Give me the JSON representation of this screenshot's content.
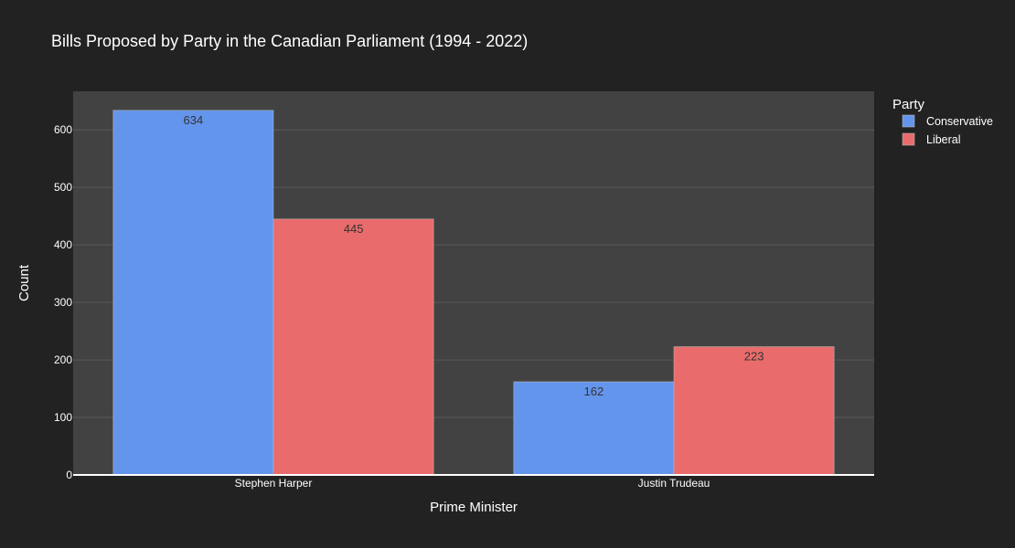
{
  "chart_data": {
    "type": "bar",
    "title": "Bills Proposed by Party in the Canadian Parliament (1994 - 2022)",
    "xlabel": "Prime Minister",
    "ylabel": "Count",
    "categories": [
      "Stephen Harper",
      "Justin Trudeau"
    ],
    "series": [
      {
        "name": "Conservative",
        "values": [
          634,
          162
        ],
        "color": "#6495ED"
      },
      {
        "name": "Liberal",
        "values": [
          445,
          223
        ],
        "color": "#EA6B6B"
      }
    ],
    "ylim": [
      0,
      667
    ],
    "yticks": [
      0,
      100,
      200,
      300,
      400,
      500,
      600
    ],
    "grid": true,
    "legend": {
      "title": "Party",
      "placement": "right-top"
    },
    "colors": {
      "paper": "#222222",
      "plot": "#424242",
      "grid": "#5a5a5a",
      "axis_line": "#ffffff",
      "bar_label": "#333333"
    }
  }
}
